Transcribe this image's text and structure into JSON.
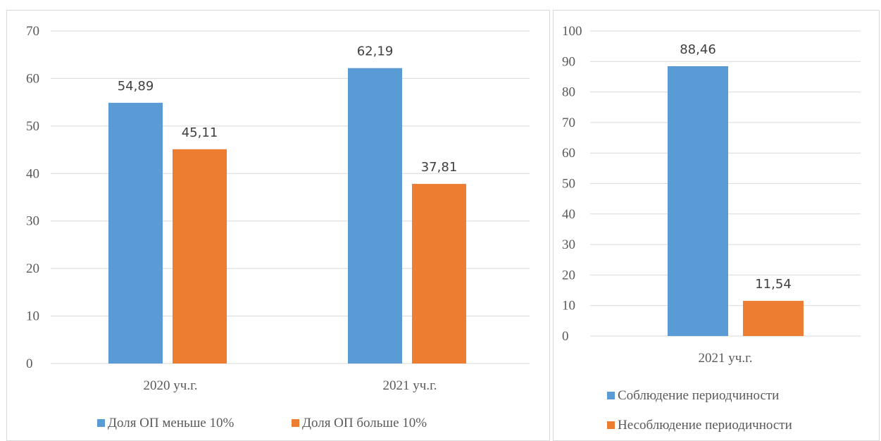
{
  "colors": {
    "series1": "#5b9bd5",
    "series2": "#ed7d31",
    "grid": "#d9d9d9",
    "border": "#d9d9d9"
  },
  "chart_data": [
    {
      "type": "bar",
      "categories": [
        "2020 уч.г.",
        "2021 уч.г."
      ],
      "series": [
        {
          "name": "Доля ОП меньше 10%",
          "values": [
            54.89,
            62.19
          ],
          "labels": [
            "54,89",
            "62,19"
          ]
        },
        {
          "name": "Доля ОП больше 10%",
          "values": [
            45.11,
            37.81
          ],
          "labels": [
            "45,11",
            "37,81"
          ]
        }
      ],
      "ylim": [
        0,
        70
      ],
      "yticks": [
        "0",
        "10",
        "20",
        "30",
        "40",
        "50",
        "60",
        "70"
      ],
      "grid": true,
      "legend": "bottom"
    },
    {
      "type": "bar",
      "categories": [
        "2021 уч.г."
      ],
      "series": [
        {
          "name": "Соблюдение периодчиности",
          "values": [
            88.46
          ],
          "labels": [
            "88,46"
          ]
        },
        {
          "name": "Несоблюдение периодичности",
          "values": [
            11.54
          ],
          "labels": [
            "11,54"
          ]
        }
      ],
      "ylim": [
        0,
        100
      ],
      "yticks": [
        "0",
        "10",
        "20",
        "30",
        "40",
        "50",
        "60",
        "70",
        "80",
        "90",
        "100"
      ],
      "grid": true,
      "legend": "bottom-stacked"
    }
  ]
}
